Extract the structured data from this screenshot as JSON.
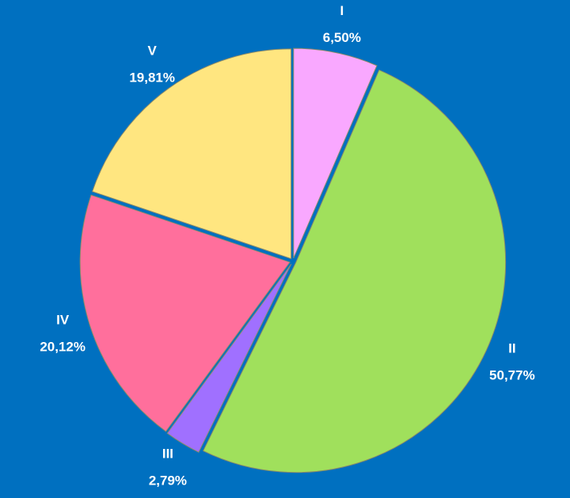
{
  "chart_data": {
    "type": "pie",
    "categories": [
      "I",
      "II",
      "III",
      "IV",
      "V"
    ],
    "values": [
      6.5,
      50.77,
      2.79,
      20.12,
      19.81
    ],
    "value_labels": [
      "6,50%",
      "50,77%",
      "2,79%",
      "20,12%",
      "19,81%"
    ],
    "colors": [
      "#f9a8ff",
      "#a0e05c",
      "#a070ff",
      "#ff6f9c",
      "#ffe680"
    ]
  }
}
